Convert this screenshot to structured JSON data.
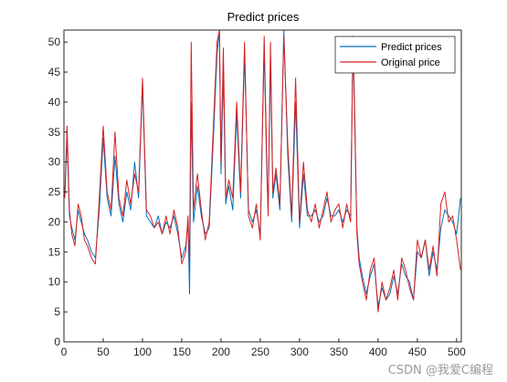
{
  "chart_data": {
    "type": "line",
    "title": "Predict prices",
    "xlabel": "",
    "ylabel": "",
    "xlim": [
      0,
      506
    ],
    "ylim": [
      0,
      52
    ],
    "xticks": [
      0,
      50,
      100,
      150,
      200,
      250,
      300,
      350,
      400,
      450,
      500
    ],
    "yticks": [
      0,
      5,
      10,
      15,
      20,
      25,
      30,
      35,
      40,
      45,
      50
    ],
    "grid": false,
    "legend": "top-right",
    "series": [
      {
        "name": "Predict prices",
        "color": "#0072BD",
        "x": [
          1,
          4,
          7,
          10,
          14,
          18,
          22,
          26,
          30,
          35,
          40,
          45,
          50,
          55,
          60,
          65,
          70,
          75,
          80,
          85,
          90,
          95,
          100,
          105,
          110,
          115,
          120,
          125,
          130,
          135,
          140,
          145,
          150,
          155,
          158,
          160,
          162,
          165,
          170,
          175,
          180,
          185,
          190,
          195,
          198,
          200,
          203,
          206,
          210,
          215,
          220,
          225,
          230,
          235,
          240,
          245,
          250,
          255,
          258,
          260,
          263,
          266,
          270,
          275,
          280,
          285,
          290,
          295,
          300,
          305,
          310,
          315,
          320,
          325,
          330,
          335,
          340,
          345,
          350,
          355,
          360,
          365,
          368,
          370,
          373,
          376,
          380,
          385,
          390,
          395,
          400,
          405,
          410,
          415,
          420,
          425,
          430,
          435,
          440,
          445,
          450,
          455,
          460,
          465,
          470,
          475,
          480,
          485,
          490,
          495,
          500,
          505
        ],
        "y": [
          24,
          34,
          21,
          19,
          17,
          22,
          20,
          18,
          17,
          15,
          14,
          22,
          34,
          24,
          21,
          31,
          23,
          20,
          25,
          22,
          30,
          24,
          43,
          21,
          20,
          19,
          21,
          18,
          20,
          19,
          21,
          18,
          14,
          16,
          20,
          8,
          40,
          20,
          26,
          21,
          18,
          19,
          33,
          48,
          52,
          28,
          45,
          23,
          26,
          22,
          38,
          24,
          48,
          22,
          20,
          22,
          18,
          49,
          30,
          22,
          47,
          24,
          28,
          22,
          52,
          31,
          20,
          40,
          19,
          28,
          21,
          21,
          22,
          20,
          21,
          24,
          21,
          21,
          22,
          20,
          22,
          21,
          51,
          38,
          19,
          14,
          11,
          8,
          11,
          13,
          6,
          9,
          7,
          8,
          11,
          8,
          13,
          11,
          10,
          7,
          15,
          14,
          17,
          11,
          15,
          12,
          19,
          22,
          21,
          20,
          18,
          24
        ]
      },
      {
        "name": "Original price",
        "color": "#D62020",
        "x": [
          1,
          4,
          7,
          10,
          14,
          18,
          22,
          26,
          30,
          35,
          40,
          45,
          50,
          55,
          60,
          65,
          70,
          75,
          80,
          85,
          90,
          95,
          100,
          105,
          110,
          115,
          120,
          125,
          130,
          135,
          140,
          145,
          150,
          155,
          158,
          160,
          162,
          165,
          170,
          175,
          180,
          185,
          190,
          195,
          198,
          200,
          203,
          206,
          210,
          215,
          220,
          225,
          230,
          235,
          240,
          245,
          250,
          255,
          258,
          260,
          263,
          266,
          270,
          275,
          280,
          285,
          290,
          295,
          300,
          305,
          310,
          315,
          320,
          325,
          330,
          335,
          340,
          345,
          350,
          355,
          360,
          365,
          368,
          370,
          373,
          376,
          380,
          385,
          390,
          395,
          400,
          405,
          410,
          415,
          420,
          425,
          430,
          435,
          440,
          445,
          450,
          455,
          460,
          465,
          470,
          475,
          480,
          485,
          490,
          495,
          500,
          505
        ],
        "y": [
          24,
          36,
          22,
          18,
          16,
          23,
          21,
          17,
          16,
          14,
          13,
          24,
          36,
          25,
          22,
          35,
          24,
          21,
          27,
          23,
          28,
          25,
          44,
          22,
          21,
          19,
          20,
          18,
          21,
          18,
          22,
          19,
          13,
          15,
          21,
          13,
          50,
          22,
          28,
          22,
          17,
          20,
          35,
          50,
          52,
          30,
          49,
          24,
          27,
          24,
          40,
          25,
          50,
          21,
          19,
          23,
          17,
          51,
          32,
          21,
          50,
          25,
          29,
          23,
          51,
          33,
          21,
          44,
          20,
          30,
          22,
          20,
          23,
          19,
          22,
          25,
          20,
          22,
          23,
          19,
          23,
          20,
          50,
          40,
          18,
          13,
          10,
          7,
          12,
          14,
          5,
          10,
          7,
          9,
          12,
          7,
          14,
          12,
          9,
          7,
          17,
          14,
          17,
          12,
          16,
          11,
          23,
          25,
          20,
          21,
          17,
          12
        ]
      }
    ]
  },
  "watermark": "CSDN @我爱C编程"
}
